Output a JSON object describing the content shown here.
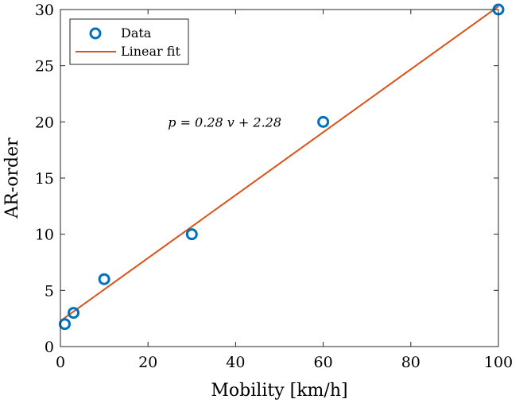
{
  "chart_data": {
    "type": "scatter",
    "title": "",
    "xlabel": "Mobility [km/h]",
    "ylabel": "AR-order",
    "xlim": [
      0,
      100
    ],
    "ylim": [
      0,
      30
    ],
    "xticks": [
      0,
      20,
      40,
      60,
      80,
      100
    ],
    "yticks": [
      0,
      5,
      10,
      15,
      20,
      25,
      30
    ],
    "grid": false,
    "legend_position": "top-left",
    "series": [
      {
        "name": "Data",
        "type": "scatter",
        "marker": "circle",
        "color": "#0072BD",
        "x": [
          1,
          3,
          10,
          30,
          60,
          100
        ],
        "y": [
          2,
          3,
          6,
          10,
          20,
          30
        ]
      },
      {
        "name": "Linear fit",
        "type": "line",
        "color": "#D95319",
        "slope": 0.28,
        "intercept": 2.28,
        "x": [
          0,
          100
        ],
        "y": [
          2.28,
          30.28
        ]
      }
    ],
    "annotation": {
      "text": "p = 0.28 v + 2.28",
      "x": 37.5,
      "y": 20
    }
  }
}
